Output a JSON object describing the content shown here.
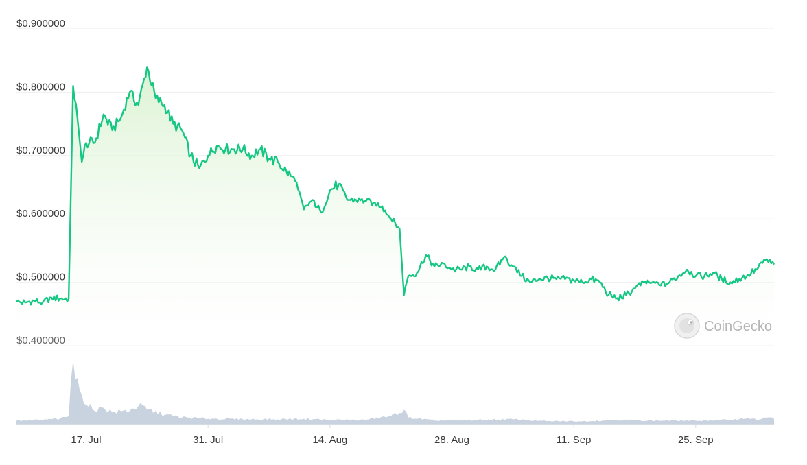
{
  "chart_data": {
    "type": "area",
    "y_axis": {
      "ticks": [
        0.4,
        0.5,
        0.6,
        0.7,
        0.8,
        0.9
      ],
      "tick_labels": [
        "$0.400000",
        "$0.500000",
        "$0.600000",
        "$0.700000",
        "$0.800000",
        "$0.900000"
      ],
      "range": [
        0.4,
        0.9
      ]
    },
    "x_axis": {
      "range": [
        "2023-07-09",
        "2023-10-04"
      ],
      "ticks": [
        "2023-07-17",
        "2023-07-31",
        "2023-08-14",
        "2023-08-28",
        "2023-09-11",
        "2023-09-25"
      ],
      "tick_labels": [
        "17. Jul",
        "31. Jul",
        "14. Aug",
        "28. Aug",
        "11. Sep",
        "25. Sep"
      ]
    },
    "grid": true,
    "legend": "none",
    "series": [
      {
        "kind": "price",
        "color": "#16c784",
        "points": [
          [
            "2023-07-09",
            0.469
          ],
          [
            "2023-07-10",
            0.468
          ],
          [
            "2023-07-11",
            0.471
          ],
          [
            "2023-07-12",
            0.468
          ],
          [
            "2023-07-13",
            0.476
          ],
          [
            "2023-07-14",
            0.474
          ],
          [
            "2023-07-15",
            0.474
          ],
          [
            "2023-07-15T12",
            0.81
          ],
          [
            "2023-07-16",
            0.76
          ],
          [
            "2023-07-16T12",
            0.69
          ],
          [
            "2023-07-17",
            0.72
          ],
          [
            "2023-07-18",
            0.72
          ],
          [
            "2023-07-19",
            0.765
          ],
          [
            "2023-07-20",
            0.74
          ],
          [
            "2023-07-21",
            0.76
          ],
          [
            "2023-07-22",
            0.8
          ],
          [
            "2023-07-23",
            0.78
          ],
          [
            "2023-07-24",
            0.84
          ],
          [
            "2023-07-25",
            0.79
          ],
          [
            "2023-07-26",
            0.78
          ],
          [
            "2023-07-27",
            0.75
          ],
          [
            "2023-07-28",
            0.74
          ],
          [
            "2023-07-29",
            0.7
          ],
          [
            "2023-07-30",
            0.68
          ],
          [
            "2023-07-31",
            0.7
          ],
          [
            "2023-08-01",
            0.715
          ],
          [
            "2023-08-02",
            0.71
          ],
          [
            "2023-08-03",
            0.71
          ],
          [
            "2023-08-04",
            0.71
          ],
          [
            "2023-08-05",
            0.7
          ],
          [
            "2023-08-06",
            0.71
          ],
          [
            "2023-08-07",
            0.695
          ],
          [
            "2023-08-08",
            0.69
          ],
          [
            "2023-08-09",
            0.675
          ],
          [
            "2023-08-10",
            0.66
          ],
          [
            "2023-08-11",
            0.615
          ],
          [
            "2023-08-12",
            0.63
          ],
          [
            "2023-08-13",
            0.61
          ],
          [
            "2023-08-14",
            0.645
          ],
          [
            "2023-08-15",
            0.655
          ],
          [
            "2023-08-16",
            0.63
          ],
          [
            "2023-08-17",
            0.63
          ],
          [
            "2023-08-18",
            0.628
          ],
          [
            "2023-08-19",
            0.626
          ],
          [
            "2023-08-20",
            0.62
          ],
          [
            "2023-08-21",
            0.6
          ],
          [
            "2023-08-22",
            0.585
          ],
          [
            "2023-08-22T12",
            0.48
          ],
          [
            "2023-08-23",
            0.51
          ],
          [
            "2023-08-24",
            0.515
          ],
          [
            "2023-08-25",
            0.543
          ],
          [
            "2023-08-26",
            0.525
          ],
          [
            "2023-08-27",
            0.53
          ],
          [
            "2023-08-28",
            0.52
          ],
          [
            "2023-08-29",
            0.52
          ],
          [
            "2023-08-30",
            0.525
          ],
          [
            "2023-08-31",
            0.52
          ],
          [
            "2023-09-01",
            0.525
          ],
          [
            "2023-09-02",
            0.52
          ],
          [
            "2023-09-03",
            0.54
          ],
          [
            "2023-09-04",
            0.525
          ],
          [
            "2023-09-05",
            0.51
          ],
          [
            "2023-09-06",
            0.5
          ],
          [
            "2023-09-07",
            0.505
          ],
          [
            "2023-09-08",
            0.507
          ],
          [
            "2023-09-09",
            0.505
          ],
          [
            "2023-09-10",
            0.505
          ],
          [
            "2023-09-11",
            0.503
          ],
          [
            "2023-09-12",
            0.5
          ],
          [
            "2023-09-13",
            0.505
          ],
          [
            "2023-09-14",
            0.5
          ],
          [
            "2023-09-15",
            0.48
          ],
          [
            "2023-09-16",
            0.475
          ],
          [
            "2023-09-17",
            0.48
          ],
          [
            "2023-09-18",
            0.49
          ],
          [
            "2023-09-19",
            0.5
          ],
          [
            "2023-09-20",
            0.5
          ],
          [
            "2023-09-21",
            0.495
          ],
          [
            "2023-09-22",
            0.5
          ],
          [
            "2023-09-23",
            0.51
          ],
          [
            "2023-09-24",
            0.52
          ],
          [
            "2023-09-25",
            0.51
          ],
          [
            "2023-09-26",
            0.51
          ],
          [
            "2023-09-27",
            0.515
          ],
          [
            "2023-09-28",
            0.505
          ],
          [
            "2023-09-29",
            0.5
          ],
          [
            "2023-09-30",
            0.505
          ],
          [
            "2023-10-01",
            0.512
          ],
          [
            "2023-10-02",
            0.52
          ],
          [
            "2023-10-03",
            0.535
          ],
          [
            "2023-10-04",
            0.528
          ]
        ]
      },
      {
        "kind": "volume",
        "color": "#c9d3e0",
        "points": [
          [
            "2023-07-09",
            0.05
          ],
          [
            "2023-07-12",
            0.06
          ],
          [
            "2023-07-14",
            0.08
          ],
          [
            "2023-07-15",
            0.12
          ],
          [
            "2023-07-15T12",
            1.0
          ],
          [
            "2023-07-16",
            0.72
          ],
          [
            "2023-07-16T12",
            0.45
          ],
          [
            "2023-07-17",
            0.3
          ],
          [
            "2023-07-18",
            0.2
          ],
          [
            "2023-07-19",
            0.25
          ],
          [
            "2023-07-20",
            0.18
          ],
          [
            "2023-07-22",
            0.2
          ],
          [
            "2023-07-23",
            0.28
          ],
          [
            "2023-07-24",
            0.22
          ],
          [
            "2023-07-26",
            0.14
          ],
          [
            "2023-07-28",
            0.1
          ],
          [
            "2023-07-31",
            0.08
          ],
          [
            "2023-08-04",
            0.07
          ],
          [
            "2023-08-08",
            0.07
          ],
          [
            "2023-08-11",
            0.08
          ],
          [
            "2023-08-14",
            0.06
          ],
          [
            "2023-08-18",
            0.06
          ],
          [
            "2023-08-21",
            0.12
          ],
          [
            "2023-08-22T12",
            0.22
          ],
          [
            "2023-08-23",
            0.1
          ],
          [
            "2023-08-26",
            0.05
          ],
          [
            "2023-08-31",
            0.06
          ],
          [
            "2023-09-04",
            0.07
          ],
          [
            "2023-09-08",
            0.04
          ],
          [
            "2023-09-12",
            0.04
          ],
          [
            "2023-09-16",
            0.06
          ],
          [
            "2023-09-20",
            0.05
          ],
          [
            "2023-09-25",
            0.05
          ],
          [
            "2023-09-29",
            0.06
          ],
          [
            "2023-10-01",
            0.09
          ],
          [
            "2023-10-02",
            0.06
          ],
          [
            "2023-10-03",
            0.1
          ],
          [
            "2023-10-04",
            0.08
          ]
        ]
      }
    ]
  },
  "watermark": {
    "text": "CoinGecko",
    "icon": "gecko-logo-icon"
  }
}
